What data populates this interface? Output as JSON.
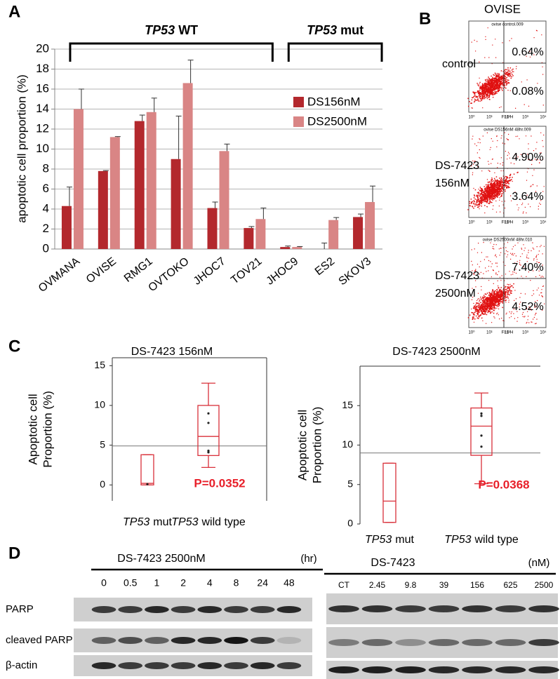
{
  "chart_data": [
    {
      "type": "bar",
      "panel": "A",
      "ylabel": "apoptotic cell proportion (%)",
      "categories": [
        "OVMANA",
        "OVISE",
        "RMG1",
        "OVTOKO",
        "JHOC7",
        "TOV21",
        "JHOC9",
        "ES2",
        "SKOV3"
      ],
      "series": [
        {
          "name": "DS156nM",
          "color": "#b3282d",
          "values": [
            4.3,
            7.8,
            12.8,
            9,
            4.1,
            2.1,
            0.2,
            0,
            3.2
          ],
          "errors": [
            1.9,
            0.05,
            0.6,
            4.3,
            0.6,
            0.15,
            0.1,
            0.6,
            0.3
          ]
        },
        {
          "name": "DS2500nM",
          "color": "#d98585",
          "values": [
            14,
            11.2,
            13.7,
            16.6,
            9.8,
            3,
            0.2,
            2.9,
            4.7
          ],
          "errors": [
            2,
            0.05,
            1.4,
            2.3,
            0.7,
            1.1,
            0.05,
            0.25,
            1.6
          ]
        }
      ],
      "groups": [
        {
          "gene": "TP53",
          "status": "WT",
          "categories": [
            "OVMANA",
            "TOV21"
          ]
        },
        {
          "gene": "TP53",
          "status": "mut",
          "categories": [
            "JHOC9",
            "SKOV3"
          ]
        }
      ],
      "ylim": [
        0,
        20
      ],
      "yticks": [
        0,
        2,
        4,
        6,
        8,
        10,
        12,
        14,
        16,
        18,
        20
      ],
      "grid": true,
      "legend": "upper-right"
    },
    {
      "type": "box",
      "panel": "C",
      "title": "DS-7423 156nM",
      "ylabel": [
        "Apoptotic cell",
        "Proportion (%)"
      ],
      "categories": [
        {
          "gene": "TP53",
          "status": "mut"
        },
        {
          "gene": "TP53",
          "status": "wild type"
        }
      ],
      "boxes": [
        {
          "min": 0,
          "q1": 0,
          "median": 0.2,
          "q3": 3.8,
          "max": 3.8,
          "points": [
            0.1
          ]
        },
        {
          "min": 2.2,
          "q1": 3.7,
          "median": 6.1,
          "q3": 10,
          "max": 12.8,
          "points": [
            4.1,
            4.3,
            7.8,
            9
          ]
        }
      ],
      "reference_line": 4.9,
      "annotation": "P=0.0352",
      "color": "#d9303a",
      "ylim": [
        -2,
        16
      ],
      "yticks": [
        0,
        5,
        10,
        15
      ]
    },
    {
      "type": "box",
      "title": "DS-7423 2500nM",
      "ylabel": [
        "Apoptotic cell",
        "Proportion (%)"
      ],
      "categories": [
        {
          "gene": "TP53",
          "status": "mut"
        },
        {
          "gene": "TP53",
          "status": "wild type"
        }
      ],
      "boxes": [
        {
          "min": 0.2,
          "q1": 0.2,
          "median": 2.9,
          "q3": 7.7,
          "max": 7.7,
          "points": []
        },
        {
          "min": 5.1,
          "q1": 8.7,
          "median": 12.4,
          "q3": 14.7,
          "max": 16.6,
          "points": [
            9.8,
            11.2,
            13.7,
            14
          ]
        }
      ],
      "reference_line": 9,
      "annotation": "P=0.0368",
      "color": "#d9303a",
      "ylim": [
        0,
        20
      ],
      "yticks": [
        0,
        5,
        10,
        15
      ]
    }
  ],
  "flow_cytometry": {
    "panel": "B",
    "title": "OVISE",
    "x_label": "FL1-H",
    "xticks": [
      "10⁰",
      "10¹",
      "10²",
      "10³",
      "10⁴"
    ],
    "plots": [
      {
        "file": "ovise control.009",
        "label": [
          "control"
        ],
        "upper_right": "0.64%",
        "lower_right": "0.08%"
      },
      {
        "file": "ovise DS156nM 48hr.009",
        "label": [
          "DS-7423",
          "156nM"
        ],
        "upper_right": "4.90%",
        "lower_right": "3.64%"
      },
      {
        "file": "ovise DS2500nM 48hr.010",
        "label": [
          "DS-7423",
          "2500nM"
        ],
        "upper_right": "7.40%",
        "lower_right": "4.52%"
      }
    ]
  },
  "western_blot": {
    "panel": "D",
    "blots": [
      {
        "title": "DS-7423 2500nM",
        "unit": "(hr)",
        "lanes": [
          "0",
          "0.5",
          "1",
          "2",
          "4",
          "8",
          "24",
          "48"
        ],
        "rows": [
          {
            "label": "PARP",
            "intensity": [
              0.8,
              0.8,
              0.9,
              0.8,
              0.9,
              0.8,
              0.8,
              0.9
            ]
          },
          {
            "label": "cleaved PARP",
            "intensity": [
              0.6,
              0.7,
              0.6,
              0.9,
              0.9,
              1,
              0.8,
              0.15
            ]
          },
          {
            "label": "β-actin",
            "intensity": [
              0.9,
              0.8,
              0.8,
              0.8,
              0.9,
              0.8,
              0.9,
              0.8
            ]
          }
        ]
      },
      {
        "title": "DS-7423",
        "unit": "(nM)",
        "lanes": [
          "CT",
          "2.45",
          "9.8",
          "39",
          "156",
          "625",
          "2500"
        ],
        "rows": [
          {
            "intensity": [
              0.85,
              0.85,
              0.8,
              0.8,
              0.85,
              0.8,
              0.85
            ]
          },
          {
            "intensity": [
              0.45,
              0.55,
              0.35,
              0.55,
              0.55,
              0.55,
              0.8
            ]
          },
          {
            "intensity": [
              0.95,
              0.95,
              0.95,
              0.9,
              0.9,
              0.9,
              0.9
            ]
          }
        ]
      }
    ]
  }
}
